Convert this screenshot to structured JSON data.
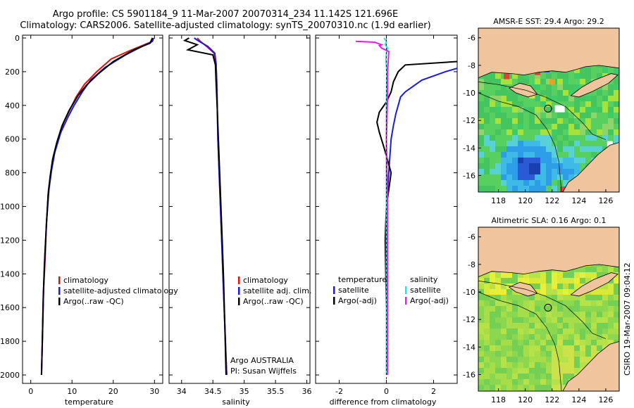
{
  "header": {
    "line1": "Argo profile: CS 5901184_9 11-Mar-2007 20070314_234 11.142S 121.696E",
    "line2": "Climatology: CARS2006. Satellite-adjusted climatology: synTS_20070310.nc (1.9d earlier)"
  },
  "footer_credit": "CSIRO 19-Mar-2007 09:04:12",
  "colors": {
    "red": "#e01010",
    "blue": "#1a1ae6",
    "black": "#000000",
    "cyan": "#1ee6f0",
    "magenta": "#e61ee6"
  },
  "chart_data": [
    {
      "id": "temperature",
      "type": "line",
      "xlabel": "temperature",
      "ylabel": "",
      "xlim": [
        -2,
        32
      ],
      "ylim": [
        2050,
        0
      ],
      "xticks": [
        0,
        10,
        20,
        30
      ],
      "yticks": [
        0,
        200,
        400,
        600,
        800,
        1000,
        1200,
        1400,
        1600,
        1800,
        2000
      ],
      "legend": [
        "climatology",
        "satellite-adjusted climatology",
        "Argo(..raw -QC)"
      ],
      "series": [
        {
          "name": "climatology",
          "color": "red",
          "x": [
            29.5,
            29.0,
            24.0,
            19.5,
            16.0,
            13.0,
            11.0,
            9.5,
            8.0,
            6.7,
            5.5,
            4.9,
            4.3,
            3.8,
            3.5,
            3.1,
            2.8,
            2.6
          ],
          "y": [
            0,
            25,
            75,
            125,
            200,
            275,
            350,
            425,
            500,
            600,
            700,
            800,
            900,
            1100,
            1300,
            1500,
            1800,
            2000
          ]
        },
        {
          "name": "satellite-adjusted climatology",
          "color": "blue",
          "x": [
            29.8,
            29.5,
            27.0,
            23.0,
            18.0,
            14.5,
            12.5,
            10.5,
            9.0,
            7.3,
            5.8,
            5.0,
            4.4,
            3.8,
            3.4,
            3.1,
            2.8,
            2.6
          ],
          "y": [
            0,
            20,
            50,
            100,
            175,
            250,
            320,
            400,
            470,
            560,
            680,
            790,
            900,
            1100,
            1300,
            1500,
            1800,
            2000
          ]
        },
        {
          "name": "Argo(..raw -QC)",
          "color": "black",
          "x": [
            29.5,
            29.0,
            25.0,
            20.0,
            16.5,
            13.5,
            11.5,
            9.3,
            7.6,
            6.3,
            5.3,
            4.7,
            4.2,
            3.7,
            3.3,
            3.0,
            2.8,
            2.6
          ],
          "y": [
            0,
            30,
            70,
            140,
            210,
            280,
            340,
            430,
            520,
            620,
            720,
            820,
            930,
            1150,
            1350,
            1550,
            1800,
            2000
          ]
        }
      ]
    },
    {
      "id": "salinity",
      "type": "line",
      "xlabel": "salinity",
      "ylabel": "",
      "xlim": [
        33.8,
        36.05
      ],
      "ylim": [
        2050,
        0
      ],
      "xticks": [
        34,
        34.5,
        35,
        35.5,
        36
      ],
      "yticks": [
        0,
        200,
        400,
        600,
        800,
        1000,
        1200,
        1400,
        1600,
        1800,
        2000
      ],
      "legend": [
        "climatology",
        "satellite adj. clim.",
        "Argo(..raw -QC)"
      ],
      "annotation": [
        "Argo AUSTRALIA",
        "PI: Susan Wijffels"
      ],
      "series": [
        {
          "name": "climatology",
          "color": "red",
          "x": [
            34.25,
            34.3,
            34.4,
            34.52,
            34.55,
            34.56,
            34.57,
            34.58,
            34.6,
            34.62,
            34.64,
            34.66,
            34.68,
            34.7,
            34.72
          ],
          "y": [
            0,
            20,
            50,
            90,
            150,
            250,
            400,
            600,
            800,
            1000,
            1200,
            1400,
            1600,
            1800,
            2000
          ]
        },
        {
          "name": "satellite adj. clim.",
          "color": "blue",
          "x": [
            34.2,
            34.28,
            34.42,
            34.53,
            34.55,
            34.56,
            34.57,
            34.58,
            34.6,
            34.62,
            34.64,
            34.66,
            34.68,
            34.7,
            34.72
          ],
          "y": [
            0,
            20,
            50,
            90,
            150,
            250,
            400,
            600,
            800,
            1000,
            1200,
            1400,
            1600,
            1800,
            2000
          ]
        },
        {
          "name": "Argo(..raw -QC)",
          "color": "black",
          "x": [
            34.12,
            34.05,
            34.25,
            34.1,
            34.5,
            34.54,
            34.55,
            34.57,
            34.59,
            34.61,
            34.63,
            34.65,
            34.67,
            34.69,
            34.71
          ],
          "y": [
            0,
            15,
            40,
            70,
            100,
            160,
            260,
            420,
            620,
            820,
            1020,
            1220,
            1420,
            1700,
            2000
          ]
        }
      ]
    },
    {
      "id": "difference",
      "type": "line",
      "xlabel": "difference from climatology",
      "ylabel": "",
      "xlim": [
        -3,
        3
      ],
      "ylim": [
        2050,
        0
      ],
      "xticks": [
        -2,
        0,
        2
      ],
      "yticks": [
        0,
        200,
        400,
        600,
        800,
        1000,
        1200,
        1400,
        1600,
        1800,
        2000
      ],
      "legend_left": {
        "heading": "temperature",
        "items": [
          "satellite",
          "Argo(-adj)"
        ]
      },
      "legend_right": {
        "heading": "salinity",
        "items": [
          "satellite",
          "Argo(-adj)"
        ]
      },
      "series": [
        {
          "name": "temperature satellite",
          "color": "blue",
          "x": [
            3.0,
            2.5,
            1.5,
            0.8,
            0.6,
            0.5,
            0.4,
            0.3,
            0.2,
            0.15,
            0.1,
            0.05,
            0.03,
            0.0,
            0.0,
            0.0
          ],
          "y": [
            180,
            200,
            250,
            320,
            350,
            400,
            450,
            520,
            600,
            700,
            800,
            900,
            1000,
            1200,
            1600,
            2000
          ]
        },
        {
          "name": "temperature Argo(-adj)",
          "color": "black",
          "x": [
            3.0,
            0.8,
            0.5,
            0.3,
            0.2,
            0.0,
            -0.3,
            -0.4,
            -0.3,
            -0.1,
            0.0,
            0.2,
            0.1,
            0.0,
            -0.05,
            0.0,
            0.0
          ],
          "y": [
            140,
            160,
            200,
            260,
            320,
            380,
            440,
            500,
            560,
            650,
            700,
            800,
            900,
            1000,
            1200,
            1600,
            2000
          ]
        },
        {
          "name": "salinity satellite",
          "color": "cyan",
          "x": [
            -0.1,
            0.0,
            -0.05,
            0.05,
            0.0,
            -0.02,
            0.02,
            0.0,
            0.0,
            0.0
          ],
          "y": [
            0,
            20,
            40,
            60,
            90,
            130,
            200,
            400,
            1000,
            2000
          ]
        },
        {
          "name": "salinity Argo(-adj)",
          "color": "magenta",
          "x": [
            -1.3,
            -0.5,
            -0.2,
            -0.3,
            -0.2,
            0.1,
            0.05,
            0.05,
            0.0,
            0.05,
            0.05,
            0.05
          ],
          "y": [
            20,
            25,
            40,
            45,
            60,
            80,
            200,
            340,
            600,
            1000,
            1600,
            2000
          ]
        }
      ]
    },
    {
      "id": "amsre-sst-map",
      "type": "heatmap",
      "title": "AMSR-E SST: 29.4 Argo: 29.2",
      "xlim": [
        116.5,
        127
      ],
      "ylim": [
        -17.2,
        -5.3
      ],
      "xticks": [
        118,
        120,
        122,
        124,
        126
      ],
      "yticks": [
        -6,
        -8,
        -10,
        -12,
        -14,
        -16
      ],
      "argo_position": {
        "lon": 121.696,
        "lat": -11.142
      }
    },
    {
      "id": "altimetric-sla-map",
      "type": "heatmap",
      "title": "Altimetric SLA: 0.16 Argo: 0.1",
      "xlim": [
        116.5,
        127
      ],
      "ylim": [
        -17.2,
        -5.3
      ],
      "xticks": [
        118,
        120,
        122,
        124,
        126
      ],
      "yticks": [
        -6,
        -8,
        -10,
        -12,
        -14,
        -16
      ],
      "argo_position": {
        "lon": 121.696,
        "lat": -11.142
      }
    }
  ]
}
